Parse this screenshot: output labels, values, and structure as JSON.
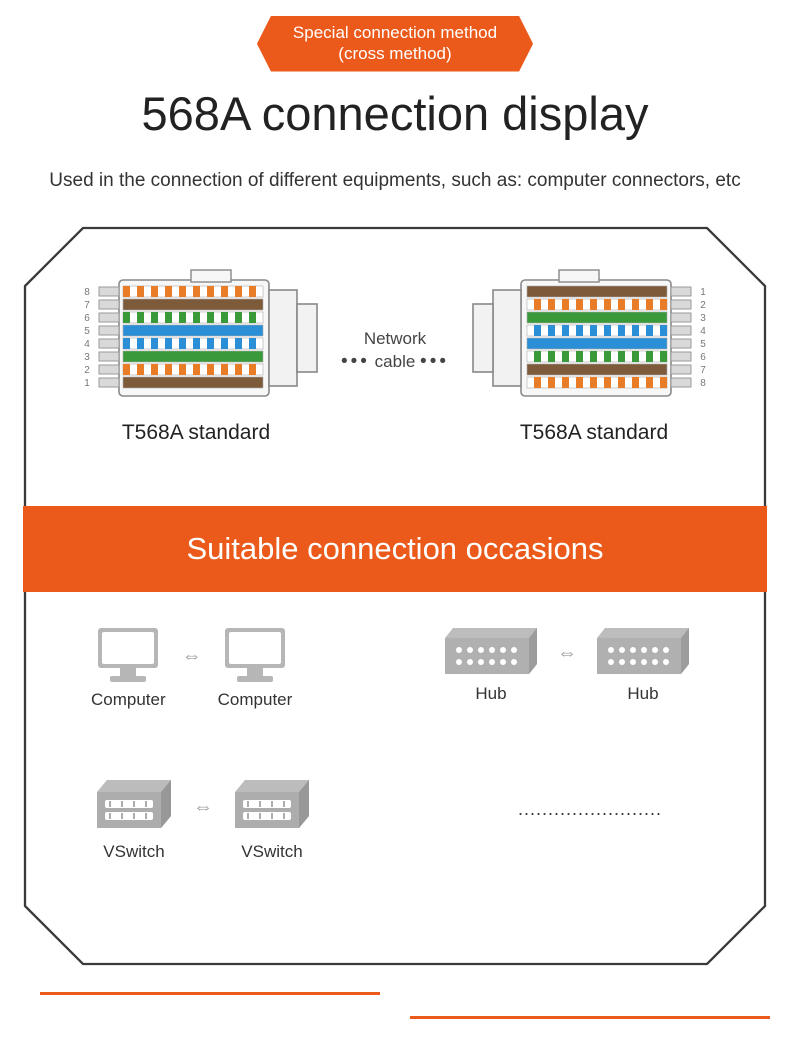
{
  "badge": {
    "line1": "Special connection method",
    "line2": "(cross method)"
  },
  "title": "568A connection display",
  "subtitle": "Used in the connection of different equipments, such as: computer connectors, etc",
  "colors": {
    "accent": "#eb5a1a",
    "frame_stroke": "#3a3a3a",
    "icon_fill": "#b6b6b6",
    "icon_stroke": "#9a9a9a",
    "text": "#222222"
  },
  "connectors": {
    "left": {
      "label": "T568A standard"
    },
    "right": {
      "label": "T568A standard"
    },
    "cable_text_top": "Network",
    "cable_text_bottom": "cable",
    "wire_colors_568a": [
      "#7d5a3a",
      "#e97d27",
      "#3a9a3a",
      "#2a8fd6",
      "#2a8fd6",
      "#3a9a3a",
      "#7d5a3a",
      "#e97d27"
    ],
    "wire_striped": [
      false,
      true,
      false,
      true,
      false,
      true,
      false,
      true
    ]
  },
  "band_text": "Suitable connection occasions",
  "occasions": {
    "computer": {
      "label": "Computer"
    },
    "hub": {
      "label": "Hub"
    },
    "vswitch": {
      "label": "VSwitch"
    },
    "more": "........................"
  }
}
